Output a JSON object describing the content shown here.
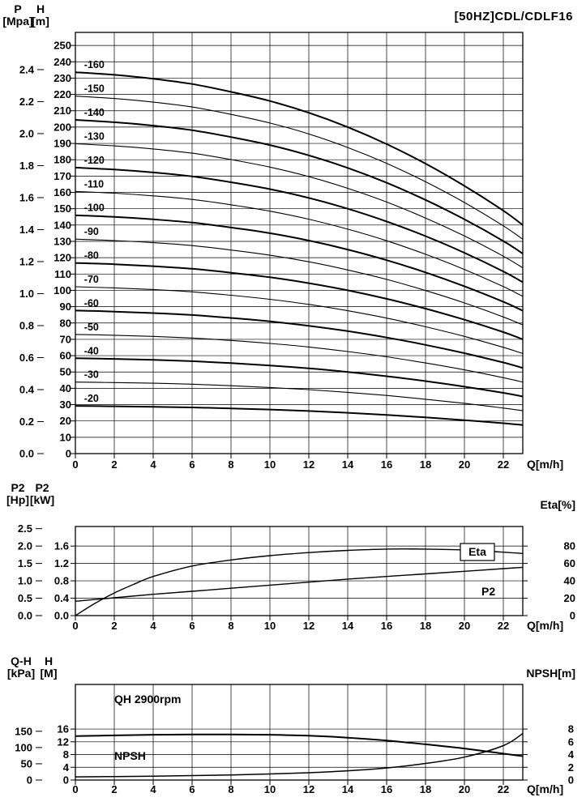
{
  "title": "[50HZ]CDL/CDLF16",
  "x_axis": {
    "label": "Q[m/h]",
    "ticks": [
      0,
      2,
      4,
      6,
      8,
      10,
      12,
      14,
      16,
      18,
      20,
      22
    ],
    "max": 23
  },
  "chart_data": [
    {
      "type": "line",
      "name": "head-capacity-curves",
      "title": "[50HZ]CDL/CDLF16",
      "pressure_axis": {
        "name": "P",
        "unit": "[Mpa]",
        "ticks": [
          "0.0",
          "0.2",
          "0.4",
          "0.6",
          "0.8",
          "1.0",
          "1.2",
          "1.4",
          "1.6",
          "1.8",
          "2.0",
          "2.2",
          "2.4"
        ],
        "m_per_mpa": 98
      },
      "head_axis": {
        "name": "H",
        "unit": "[m]",
        "ticks": [
          0,
          10,
          20,
          30,
          40,
          50,
          60,
          70,
          80,
          90,
          100,
          110,
          120,
          130,
          140,
          150,
          160,
          170,
          180,
          190,
          200,
          210,
          220,
          230,
          240,
          250
        ],
        "max": 258
      },
      "x": [
        0,
        2,
        4,
        6,
        8,
        10,
        12,
        14,
        16,
        18,
        20,
        22,
        23
      ],
      "series": [
        {
          "label": "-20",
          "bold": true,
          "values": [
            29.2,
            29.0,
            28.7,
            28.3,
            27.7,
            27.0,
            26.1,
            25.0,
            23.7,
            22.2,
            20.5,
            18.6,
            17.5
          ]
        },
        {
          "label": "-30",
          "bold": false,
          "values": [
            43.8,
            43.5,
            43.1,
            42.5,
            41.6,
            40.5,
            39.2,
            37.5,
            35.6,
            33.3,
            30.8,
            27.9,
            26.3
          ]
        },
        {
          "label": "-40",
          "bold": true,
          "values": [
            58.4,
            58.0,
            57.4,
            56.6,
            55.4,
            54.0,
            52.2,
            50.0,
            47.4,
            44.4,
            41.0,
            37.2,
            35.0
          ]
        },
        {
          "label": "-50",
          "bold": false,
          "values": [
            73.0,
            72.5,
            71.8,
            70.8,
            69.3,
            67.5,
            65.3,
            62.5,
            59.3,
            55.5,
            51.3,
            46.5,
            43.8
          ]
        },
        {
          "label": "-60",
          "bold": true,
          "values": [
            87.6,
            87.0,
            86.1,
            84.9,
            83.1,
            81.0,
            78.3,
            75.0,
            71.1,
            66.6,
            61.5,
            55.8,
            52.5
          ]
        },
        {
          "label": "-70",
          "bold": false,
          "values": [
            102.2,
            101.5,
            100.5,
            99.1,
            97.0,
            94.5,
            91.4,
            87.5,
            83.0,
            77.7,
            71.8,
            65.1,
            61.3
          ]
        },
        {
          "label": "-80",
          "bold": true,
          "values": [
            116.8,
            116.0,
            114.8,
            113.2,
            110.8,
            108.0,
            104.4,
            100.0,
            94.8,
            88.8,
            82.0,
            74.4,
            70.0
          ]
        },
        {
          "label": "-90",
          "bold": false,
          "values": [
            131.4,
            130.5,
            129.2,
            127.4,
            124.7,
            121.5,
            117.5,
            112.5,
            106.7,
            99.9,
            92.3,
            83.7,
            78.8
          ]
        },
        {
          "label": "-100",
          "bold": true,
          "values": [
            146.0,
            145.0,
            143.5,
            141.5,
            138.5,
            135.0,
            130.5,
            125.0,
            118.5,
            111.0,
            102.5,
            93.0,
            87.5
          ]
        },
        {
          "label": "-110",
          "bold": false,
          "values": [
            160.6,
            159.5,
            157.9,
            155.7,
            152.4,
            148.5,
            143.6,
            137.5,
            130.4,
            122.1,
            112.8,
            102.3,
            96.3
          ]
        },
        {
          "label": "-120",
          "bold": true,
          "values": [
            175.2,
            174.0,
            172.2,
            169.8,
            166.2,
            162.0,
            156.6,
            150.0,
            142.2,
            133.2,
            123.0,
            111.6,
            105.0
          ]
        },
        {
          "label": "-130",
          "bold": false,
          "values": [
            189.8,
            188.5,
            186.6,
            184.0,
            180.1,
            175.5,
            169.7,
            162.5,
            154.1,
            144.3,
            133.3,
            120.9,
            113.8
          ]
        },
        {
          "label": "-140",
          "bold": true,
          "values": [
            204.4,
            203.0,
            200.9,
            198.1,
            193.9,
            189.0,
            182.7,
            175.0,
            165.9,
            155.4,
            143.5,
            130.2,
            122.5
          ]
        },
        {
          "label": "-150",
          "bold": false,
          "values": [
            219.0,
            217.5,
            215.3,
            212.3,
            207.8,
            202.5,
            195.8,
            187.5,
            177.8,
            166.5,
            153.8,
            139.5,
            131.3
          ]
        },
        {
          "label": "-160",
          "bold": true,
          "values": [
            233.6,
            232.0,
            229.6,
            226.4,
            221.6,
            216.0,
            208.8,
            200.0,
            189.6,
            177.6,
            164.0,
            148.8,
            140.0
          ]
        }
      ]
    },
    {
      "type": "line",
      "name": "power-efficiency",
      "kw_axis": {
        "name": "P2",
        "unit": "[kW]",
        "ticks": [
          "0.0",
          "0.4",
          "0.8",
          "1.2",
          "1.6"
        ],
        "max": 2.05
      },
      "hp_axis": {
        "name": "P2",
        "unit": "[Hp]",
        "ticks": [
          "0.0",
          "0.5",
          "1.0",
          "1.5",
          "2.0",
          "2.5"
        ],
        "kw_per_hp": 0.8
      },
      "eta_axis": {
        "label": "Eta[%]",
        "ticks": [
          0,
          20,
          40,
          60,
          80
        ],
        "kw_per_pct": 0.02
      },
      "series": [
        {
          "label": "Eta",
          "boxed": true,
          "x": [
            0,
            1,
            2,
            3,
            4,
            6,
            8,
            10,
            12,
            14,
            16,
            18,
            20,
            22,
            23
          ],
          "values_pct": [
            0,
            14,
            26,
            36,
            45,
            57,
            64,
            69,
            72.5,
            75,
            76.5,
            76.5,
            75.5,
            73,
            71.5
          ]
        },
        {
          "label": "P2",
          "boxed": false,
          "x": [
            0,
            2,
            4,
            6,
            8,
            10,
            12,
            14,
            16,
            18,
            20,
            22,
            23
          ],
          "values_kw": [
            0.33,
            0.41,
            0.49,
            0.56,
            0.63,
            0.7,
            0.77,
            0.84,
            0.9,
            0.96,
            1.02,
            1.08,
            1.11
          ]
        }
      ]
    },
    {
      "type": "line",
      "name": "qh-npsh",
      "m_axis": {
        "name": "H",
        "unit": "[M]",
        "ticks": [
          0,
          4,
          8,
          12,
          16
        ],
        "max": 30
      },
      "kpa_axis": {
        "name": "Q-H",
        "unit": "[kPa]",
        "ticks": [
          0,
          50,
          100,
          150
        ],
        "m_per_kpa": 0.102
      },
      "npsh_axis": {
        "label": "NPSH[m]",
        "ticks": [
          0,
          2,
          4,
          6,
          8
        ],
        "m_per_npsh": 2
      },
      "series": [
        {
          "label": "QH 2900rpm",
          "x": [
            0,
            2,
            4,
            6,
            8,
            10,
            12,
            14,
            16,
            18,
            20,
            22,
            23
          ],
          "values_m": [
            13.8,
            14.0,
            14.2,
            14.3,
            14.3,
            14.2,
            13.9,
            13.3,
            12.4,
            11.2,
            9.9,
            8.3,
            7.5
          ]
        },
        {
          "label": "NPSH",
          "x": [
            0,
            2,
            4,
            6,
            8,
            10,
            12,
            14,
            16,
            18,
            20,
            22,
            23
          ],
          "values_m": [
            0.5,
            0.55,
            0.6,
            0.7,
            0.8,
            0.95,
            1.15,
            1.45,
            1.9,
            2.6,
            3.6,
            5.4,
            7.3
          ]
        }
      ],
      "inplot_labels": [
        {
          "text": "QH 2900rpm",
          "q": 2.0,
          "m": 24.2
        },
        {
          "text": "NPSH",
          "q": 2.0,
          "m": 6.3
        }
      ]
    }
  ]
}
